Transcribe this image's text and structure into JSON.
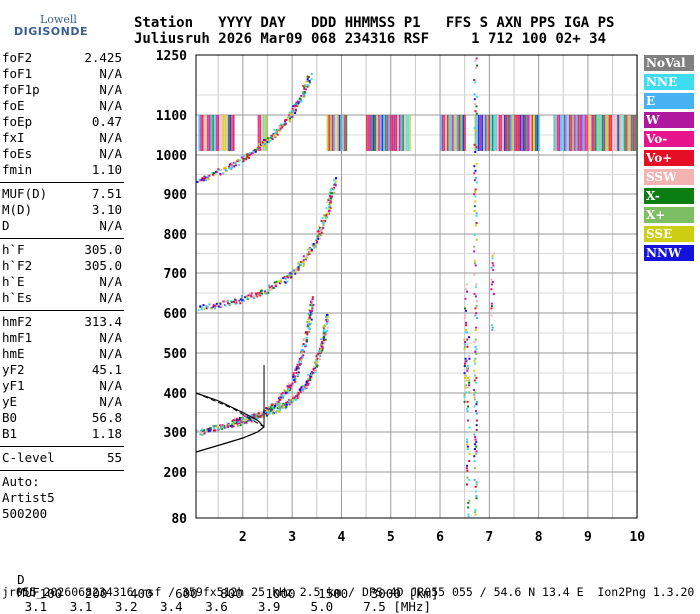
{
  "logo": {
    "top": "Lowell",
    "bottom": "DIGISONDE"
  },
  "header": {
    "line1": "Station   YYYY DAY   DDD HHMMSS P1   FFS S AXN PPS IGA PS",
    "line2": "Juliusruh 2026 Mar09 068 234316 RSF     1 712 100 02+ 34"
  },
  "parameters": [
    [
      {
        "label": "foF2",
        "value": "2.425"
      },
      {
        "label": "foF1",
        "value": "N/A"
      },
      {
        "label": "foF1p",
        "value": "N/A"
      },
      {
        "label": "foE",
        "value": "N/A"
      },
      {
        "label": "foEp",
        "value": "0.47"
      },
      {
        "label": "fxI",
        "value": "N/A"
      },
      {
        "label": "foEs",
        "value": "N/A"
      },
      {
        "label": "fmin",
        "value": "1.10"
      }
    ],
    [
      {
        "label": "MUF(D)",
        "value": "7.51"
      },
      {
        "label": "M(D)",
        "value": "3.10"
      },
      {
        "label": "D",
        "value": "N/A"
      }
    ],
    [
      {
        "label": "h`F",
        "value": "305.0"
      },
      {
        "label": "h`F2",
        "value": "305.0"
      },
      {
        "label": "h`E",
        "value": "N/A"
      },
      {
        "label": "h`Es",
        "value": "N/A"
      }
    ],
    [
      {
        "label": "hmF2",
        "value": "313.4"
      },
      {
        "label": "hmF1",
        "value": "N/A"
      },
      {
        "label": "hmE",
        "value": "N/A"
      },
      {
        "label": "yF2",
        "value": "45.1"
      },
      {
        "label": "yF1",
        "value": "N/A"
      },
      {
        "label": "yE",
        "value": "N/A"
      },
      {
        "label": "B0",
        "value": "56.8"
      },
      {
        "label": "B1",
        "value": "1.18"
      }
    ],
    [
      {
        "label": "C-level",
        "value": "55"
      }
    ]
  ],
  "autoscaling": {
    "line1": "Auto:",
    "line2": "Artist5",
    "line3": "500200"
  },
  "legend": [
    {
      "label": "NoVal",
      "color": "#808080"
    },
    {
      "label": "NNE",
      "color": "#3fdcf0"
    },
    {
      "label": "E",
      "color": "#46b2f2"
    },
    {
      "label": "W",
      "color": "#b0169e"
    },
    {
      "label": "Vo-",
      "color": "#e8148c"
    },
    {
      "label": "Vo+",
      "color": "#e60e27"
    },
    {
      "label": "SSW",
      "color": "#f4b3b0"
    },
    {
      "label": "X-",
      "color": "#0b7e12"
    },
    {
      "label": "X+",
      "color": "#7bbf62"
    },
    {
      "label": "SSE",
      "color": "#cdcd12"
    },
    {
      "label": "NNW",
      "color": "#1212dc"
    }
  ],
  "chart_data": {
    "type": "scatter",
    "x_ticks": [
      "2",
      "3",
      "4",
      "5",
      "6",
      "7",
      "8",
      "9",
      "10"
    ],
    "x_tick_values": [
      2,
      3,
      4,
      5,
      6,
      7,
      8,
      9,
      10
    ],
    "y_ticks": [
      "80",
      "200",
      "300",
      "400",
      "500",
      "600",
      "700",
      "800",
      "900",
      "1000",
      "1100",
      "1250"
    ],
    "y_tick_values": [
      80,
      200,
      300,
      400,
      500,
      600,
      700,
      800,
      900,
      1000,
      1100,
      1250
    ],
    "xlim": [
      1.05,
      10
    ],
    "ylim": [
      80,
      1250
    ],
    "grid": true,
    "legend_position": "right",
    "traces": [
      {
        "name": "o-trace",
        "x": [
          1.1,
          1.6,
          2.0,
          2.4,
          2.7,
          2.95,
          3.15,
          3.3,
          3.4
        ],
        "y": [
          300,
          318,
          330,
          350,
          380,
          420,
          480,
          560,
          640
        ]
      },
      {
        "name": "x-trace",
        "x": [
          1.8,
          2.3,
          2.7,
          3.0,
          3.25,
          3.45,
          3.6,
          3.72
        ],
        "y": [
          330,
          345,
          360,
          385,
          420,
          470,
          530,
          600
        ]
      },
      {
        "name": "second-hop",
        "x": [
          1.1,
          1.8,
          2.4,
          2.9,
          3.2,
          3.5,
          3.7,
          3.85
        ],
        "y": [
          615,
          630,
          655,
          690,
          730,
          790,
          860,
          940
        ]
      },
      {
        "name": "third-hop",
        "x": [
          1.1,
          1.7,
          2.2,
          2.6,
          2.9,
          3.15,
          3.35
        ],
        "y": [
          935,
          970,
          1010,
          1050,
          1090,
          1140,
          1200
        ]
      }
    ],
    "profile": {
      "x": [
        1.05,
        1.6,
        2.0,
        2.3,
        2.43,
        2.3,
        2.0,
        1.5,
        1.05
      ],
      "y": [
        250,
        270,
        285,
        300,
        313,
        330,
        350,
        380,
        400
      ]
    },
    "interference_band": {
      "y_range": [
        1010,
        1100
      ]
    }
  },
  "footer": {
    "d_label": "D",
    "d_values": [
      "100",
      "200",
      "400",
      "600",
      "800",
      "1000",
      "1500",
      "3000"
    ],
    "d_unit": "[km]",
    "muf_label": "MUF",
    "muf_values": [
      "3.1",
      "3.1",
      "3.2",
      "3.4",
      "3.6",
      "3.9",
      "5.0",
      "7.5"
    ],
    "muf_unit": "[MHz]",
    "info": "jr055_2026068234316.rsf / 359fx512h 25 kHz 2.5 km / DPS-4D JR055 055 / 54.6 N 13.4 E  Ion2Png 1.3.20"
  }
}
